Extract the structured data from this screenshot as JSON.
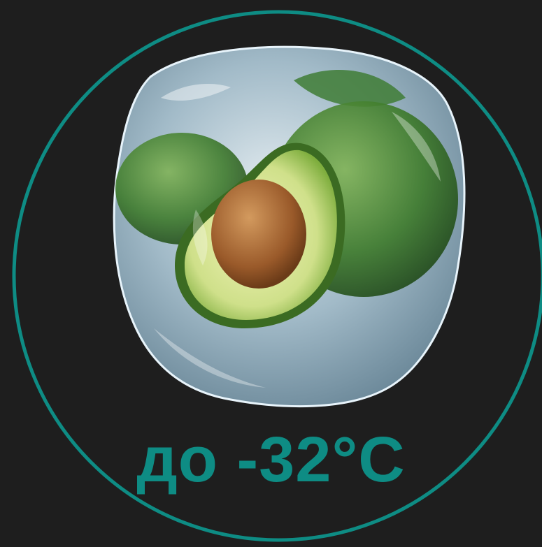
{
  "colors": {
    "background": "#1e1e1e",
    "accent": "#0e8c84",
    "ice": "#cfe6f2",
    "avocado_skin": "#3d7a2a",
    "avocado_flesh": "#cfe08a",
    "pit": "#9a5a2a"
  },
  "icons": {
    "main_image": "frozen-avocado-in-ice-cube"
  },
  "label": {
    "temperature": "до -32°C"
  }
}
